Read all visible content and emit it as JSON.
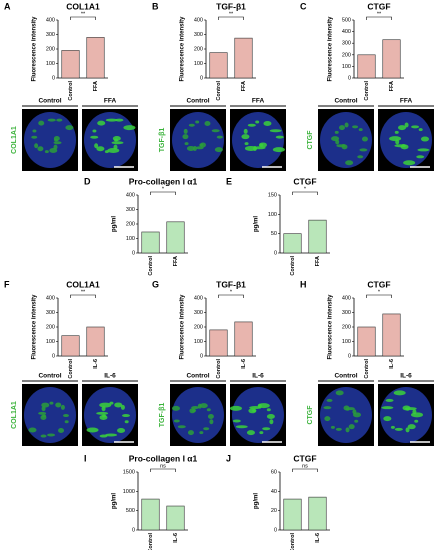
{
  "chart_data": [
    {
      "type": "bar",
      "letter": "A",
      "title": "COL1A1",
      "y_label": "Fluorescence intensity",
      "categories": [
        "Control",
        "FFA"
      ],
      "values": [
        190,
        280
      ],
      "color": "#e8b5ae",
      "ylim": [
        0,
        400
      ],
      "yticks": [
        0,
        100,
        200,
        300,
        400
      ],
      "significance": "**"
    },
    {
      "type": "bar",
      "letter": "B",
      "title": "TGF-β1",
      "y_label": "Fluorescence intensity",
      "categories": [
        "Control",
        "FFA"
      ],
      "values": [
        175,
        275
      ],
      "color": "#e8b5ae",
      "ylim": [
        0,
        400
      ],
      "yticks": [
        0,
        100,
        200,
        300,
        400
      ],
      "significance": "**"
    },
    {
      "type": "bar",
      "letter": "C",
      "title": "CTGF",
      "y_label": "Fluorescence intensity",
      "categories": [
        "Control",
        "FFA"
      ],
      "values": [
        200,
        330
      ],
      "color": "#e8b5ae",
      "ylim": [
        0,
        500
      ],
      "yticks": [
        0,
        100,
        200,
        300,
        400,
        500
      ],
      "significance": "**"
    },
    {
      "type": "bar",
      "letter": "D",
      "title": "Pro-collagen I α1",
      "y_label": "pg/ml",
      "categories": [
        "Control",
        "FFA"
      ],
      "values": [
        145,
        215
      ],
      "color": "#b9e6b9",
      "ylim": [
        0,
        400
      ],
      "yticks": [
        0,
        100,
        200,
        300,
        400
      ],
      "significance": "*"
    },
    {
      "type": "bar",
      "letter": "E",
      "title": "CTGF",
      "y_label": "pg/ml",
      "categories": [
        "Control",
        "FFA"
      ],
      "values": [
        50,
        85
      ],
      "color": "#b9e6b9",
      "ylim": [
        0,
        150
      ],
      "yticks": [
        0,
        50,
        100,
        150
      ],
      "significance": "*"
    },
    {
      "type": "bar",
      "letter": "F",
      "title": "COL1A1",
      "y_label": "Fluorescence intensity",
      "categories": [
        "Control",
        "IL-6"
      ],
      "values": [
        140,
        200
      ],
      "color": "#e8b5ae",
      "ylim": [
        0,
        400
      ],
      "yticks": [
        0,
        100,
        200,
        300,
        400
      ],
      "significance": "**"
    },
    {
      "type": "bar",
      "letter": "G",
      "title": "TGF-β1",
      "y_label": "Fluorescence intensity",
      "categories": [
        "Control",
        "IL-6"
      ],
      "values": [
        180,
        235
      ],
      "color": "#e8b5ae",
      "ylim": [
        0,
        400
      ],
      "yticks": [
        0,
        100,
        200,
        300,
        400
      ],
      "significance": "*"
    },
    {
      "type": "bar",
      "letter": "H",
      "title": "CTGF",
      "y_label": "Fluorescence intensity",
      "categories": [
        "Control",
        "IL-6"
      ],
      "values": [
        200,
        290
      ],
      "color": "#e8b5ae",
      "ylim": [
        0,
        400
      ],
      "yticks": [
        0,
        100,
        200,
        300,
        400
      ],
      "significance": "*"
    },
    {
      "type": "bar",
      "letter": "I",
      "title": "Pro-collagen I α1",
      "y_label": "pg/ml",
      "categories": [
        "Control",
        "IL-6"
      ],
      "values": [
        800,
        620
      ],
      "color": "#b9e6b9",
      "ylim": [
        0,
        1500
      ],
      "yticks": [
        0,
        500,
        1000,
        1500
      ],
      "significance": "ns"
    },
    {
      "type": "bar",
      "letter": "J",
      "title": "CTGF",
      "y_label": "pg/ml",
      "categories": [
        "Control",
        "IL-6"
      ],
      "values": [
        32,
        34
      ],
      "color": "#b9e6b9",
      "ylim": [
        0,
        60
      ],
      "yticks": [
        0,
        20,
        40,
        60
      ],
      "significance": "ns"
    }
  ],
  "image_panels": [
    {
      "stain": "COL1A1",
      "left": "Control",
      "right": "FFA"
    },
    {
      "stain": "TGF-β1",
      "left": "Control",
      "right": "FFA"
    },
    {
      "stain": "CTGF",
      "left": "Control",
      "right": "FFA"
    },
    {
      "stain": "COL1A1",
      "left": "Control",
      "right": "IL-6"
    },
    {
      "stain": "TGF-β1",
      "left": "Control",
      "right": "IL-6"
    },
    {
      "stain": "CTGF",
      "left": "Control",
      "right": "IL-6"
    }
  ]
}
